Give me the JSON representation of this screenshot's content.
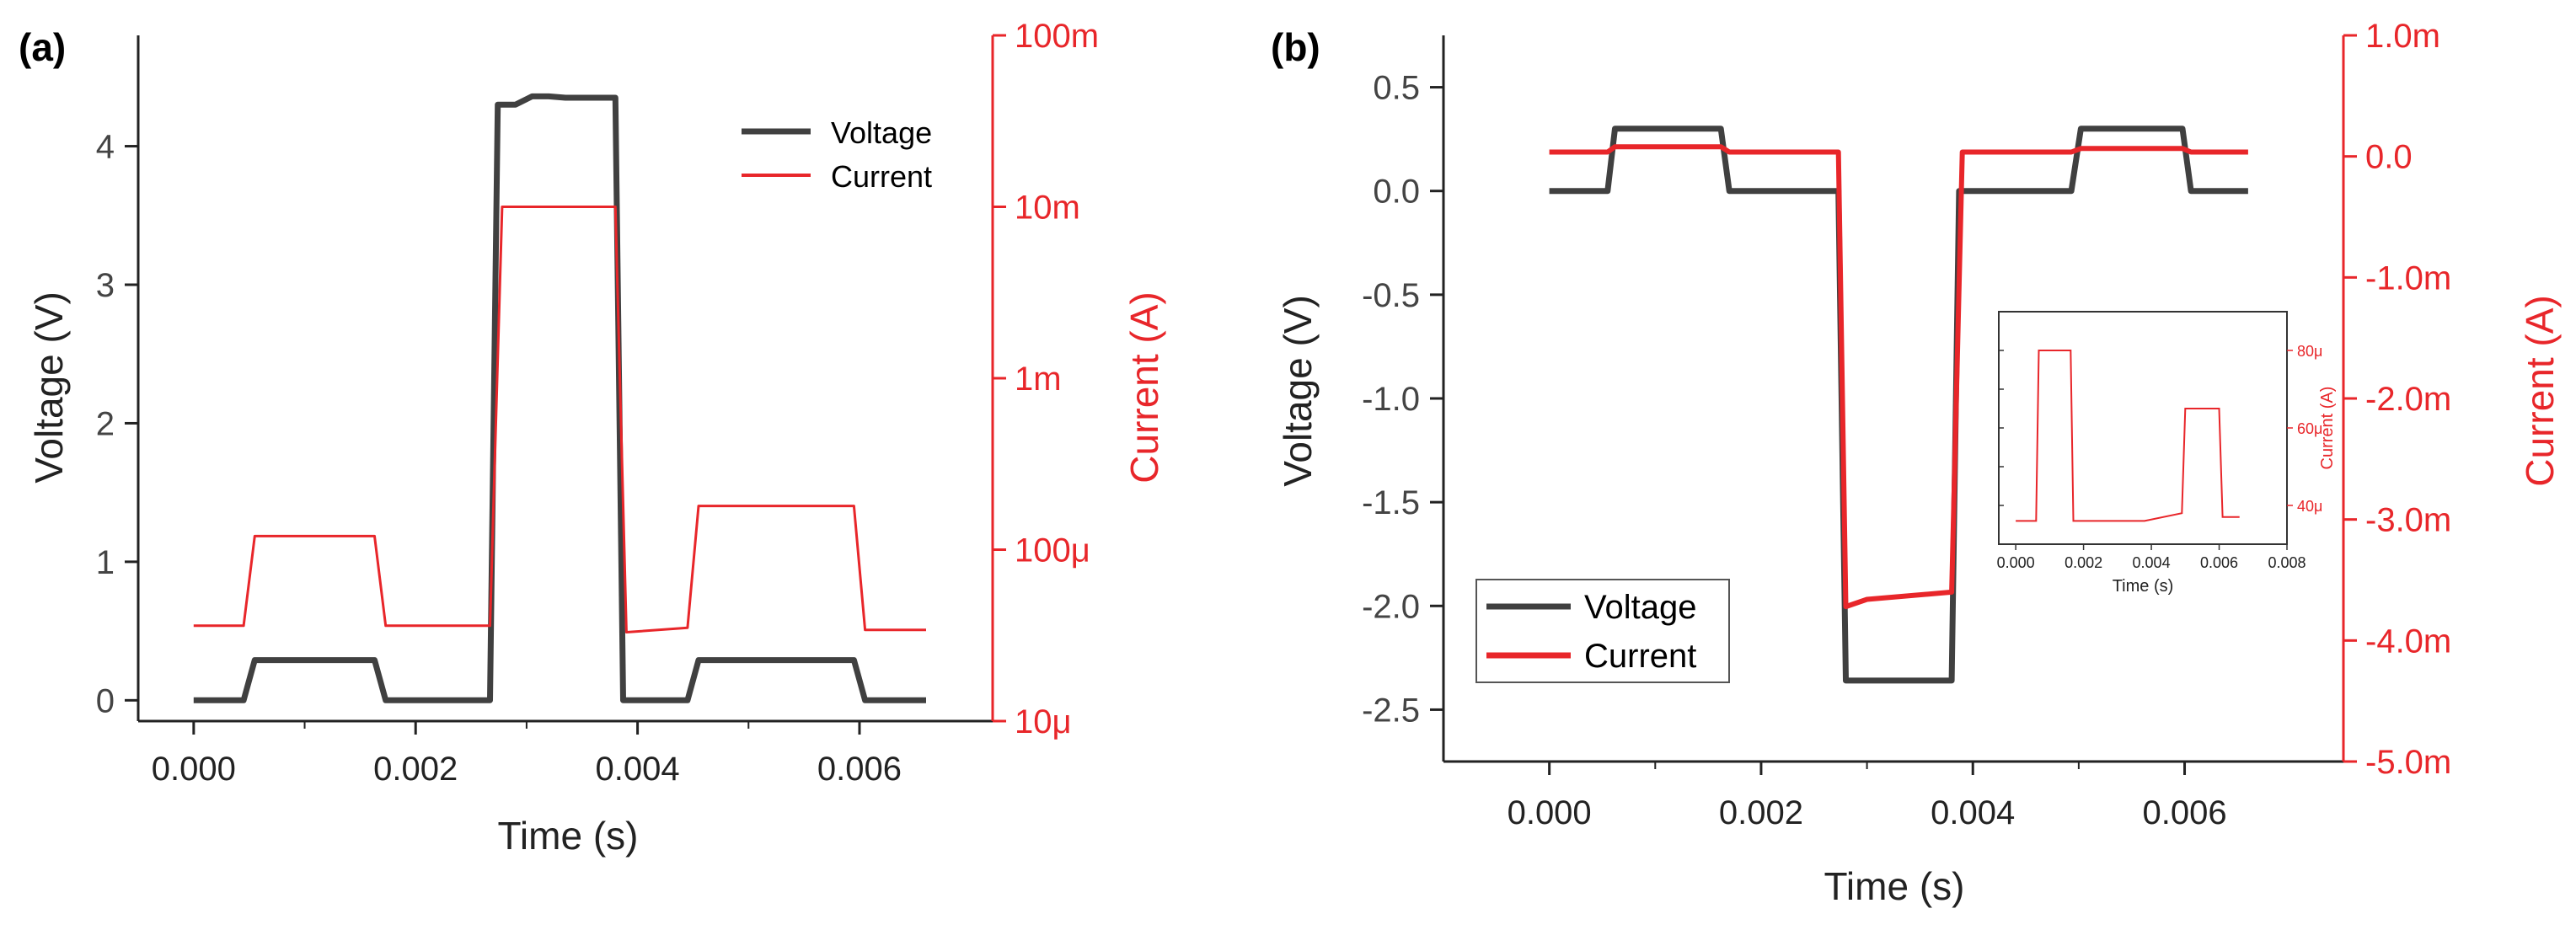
{
  "colors": {
    "voltage": "#404040",
    "current": "#e8262a",
    "axis": "#222222"
  },
  "chart_data": [
    {
      "type": "line",
      "panel_label": "(a)",
      "xlabel": "Time (s)",
      "ylabel": "Voltage (V)",
      "y2label": "Current (A)",
      "xlim": [
        -0.0005,
        0.0072
      ],
      "ylim": [
        -0.15,
        4.8
      ],
      "y2lim": [
        1e-05,
        0.1
      ],
      "y2scale": "log",
      "xticks": [
        0,
        0.002,
        0.004,
        0.006
      ],
      "xtick_labels": [
        "0.000",
        "0.002",
        "0.004",
        "0.006"
      ],
      "yticks": [
        0,
        1,
        2,
        3,
        4
      ],
      "ytick_labels": [
        "0",
        "1",
        "2",
        "3",
        "4"
      ],
      "y2ticks": [
        1e-05,
        0.0001,
        0.001,
        0.01,
        0.1
      ],
      "y2tick_labels": [
        "10μ",
        "100μ",
        "1m",
        "10m",
        "100m"
      ],
      "legend": {
        "position": "top-right",
        "entries": [
          "Voltage",
          "Current"
        ]
      },
      "series": [
        {
          "name": "Voltage",
          "axis": "left",
          "x": [
            0,
            0.00045,
            0.00055,
            0.00163,
            0.00173,
            0.00267,
            0.00274,
            0.0029,
            0.00305,
            0.0032,
            0.00335,
            0.0038,
            0.00387,
            0.00445,
            0.00455,
            0.00595,
            0.00605,
            0.0066
          ],
          "y": [
            0,
            0,
            0.29,
            0.29,
            0,
            0,
            4.3,
            4.3,
            4.36,
            4.36,
            4.35,
            4.35,
            0,
            0,
            0.29,
            0.29,
            0,
            0
          ]
        },
        {
          "name": "Current",
          "axis": "right",
          "x": [
            0,
            0.00045,
            0.00055,
            0.00163,
            0.00173,
            0.00267,
            0.00278,
            0.0038,
            0.0039,
            0.00445,
            0.00455,
            0.00595,
            0.00605,
            0.0066
          ],
          "y": [
            3.6e-05,
            3.6e-05,
            0.00012,
            0.00012,
            3.6e-05,
            3.6e-05,
            0.01,
            0.01,
            3.3e-05,
            3.5e-05,
            0.00018,
            0.00018,
            3.4e-05,
            3.4e-05
          ]
        }
      ]
    },
    {
      "type": "line",
      "panel_label": "(b)",
      "xlabel": "Time (s)",
      "ylabel": "Voltage (V)",
      "y2label": "Current (A)",
      "xlim": [
        -0.001,
        0.0075
      ],
      "ylim": [
        -2.75,
        0.75
      ],
      "y2lim": [
        -0.005,
        0.001
      ],
      "xticks": [
        0,
        0.002,
        0.004,
        0.006
      ],
      "xtick_labels": [
        "0.000",
        "0.002",
        "0.004",
        "0.006"
      ],
      "yticks": [
        0.5,
        0,
        -0.5,
        -1,
        -1.5,
        -2,
        -2.5
      ],
      "ytick_labels": [
        "0.5",
        "0.0",
        "-0.5",
        "-1.0",
        "-1.5",
        "-2.0",
        "-2.5"
      ],
      "y2ticks": [
        0.001,
        0,
        -0.001,
        -0.002,
        -0.003,
        -0.004,
        -0.005
      ],
      "y2tick_labels": [
        "1.0m",
        "0.0",
        "-1.0m",
        "-2.0m",
        "-3.0m",
        "-4.0m",
        "-5.0m"
      ],
      "legend": {
        "position": "bottom-left",
        "entries": [
          "Voltage",
          "Current"
        ]
      },
      "series": [
        {
          "name": "Voltage",
          "axis": "left",
          "x": [
            0,
            0.00055,
            0.00062,
            0.00162,
            0.0017,
            0.00273,
            0.0028,
            0.0038,
            0.00387,
            0.00493,
            0.00502,
            0.00598,
            0.00606,
            0.0066
          ],
          "y": [
            0,
            0,
            0.3,
            0.3,
            0,
            0,
            -2.36,
            -2.36,
            0,
            0,
            0.3,
            0.3,
            0,
            0
          ]
        },
        {
          "name": "Current",
          "axis": "right",
          "x": [
            0,
            0.00055,
            0.00062,
            0.00162,
            0.0017,
            0.00273,
            0.0028,
            0.003,
            0.0038,
            0.0039,
            0.00493,
            0.00502,
            0.00598,
            0.00606,
            0.0066
          ],
          "y": [
            3.6e-05,
            3.6e-05,
            8e-05,
            8e-05,
            3.6e-05,
            3.6e-05,
            -0.00372,
            -0.00366,
            -0.0036,
            3.6e-05,
            3.6e-05,
            6.5e-05,
            6.5e-05,
            3.6e-05,
            3.6e-05
          ]
        }
      ],
      "inset": {
        "type": "line",
        "xlabel": "Time (s)",
        "ylabel": "Current (A)",
        "xlim": [
          -0.0005,
          0.008
        ],
        "ylim": [
          3e-05,
          9e-05
        ],
        "xticks": [
          0,
          0.002,
          0.004,
          0.006,
          0.008
        ],
        "xtick_labels": [
          "0.000",
          "0.002",
          "0.004",
          "0.006",
          "0.008"
        ],
        "yticks": [
          4e-05,
          6e-05,
          8e-05
        ],
        "ytick_labels": [
          "40μ",
          "60μ",
          "80μ"
        ],
        "series": [
          {
            "name": "Current",
            "x": [
              0,
              0.0006,
              0.00068,
              0.00162,
              0.0017,
              0.0028,
              0.0038,
              0.0049,
              0.005,
              0.006,
              0.0061,
              0.0066
            ],
            "y": [
              3.6e-05,
              3.6e-05,
              8e-05,
              8e-05,
              3.6e-05,
              3.6e-05,
              3.6e-05,
              3.8e-05,
              6.5e-05,
              6.5e-05,
              3.7e-05,
              3.7e-05
            ]
          }
        ]
      }
    }
  ]
}
